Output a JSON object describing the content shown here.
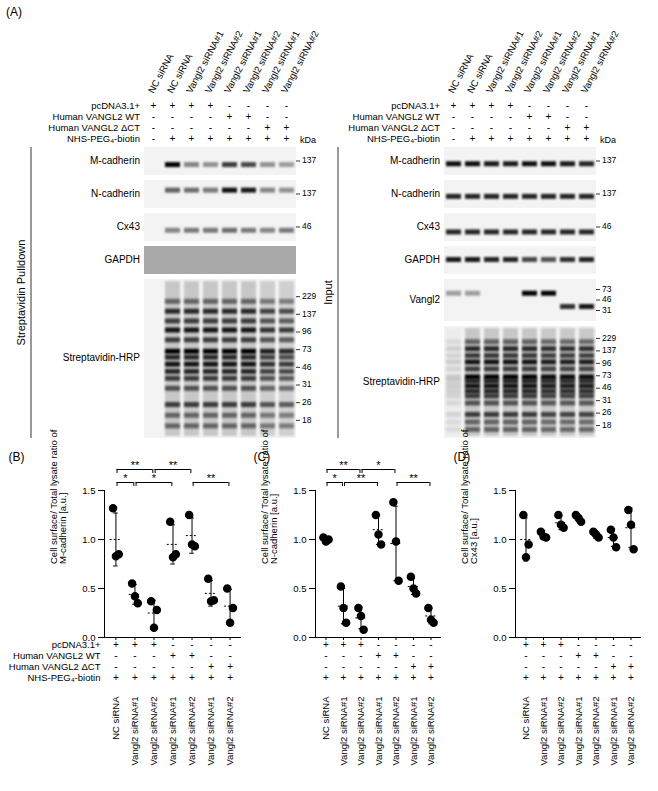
{
  "panel_A": {
    "label": "(A)",
    "kDa_label": "kDa",
    "lanes": [
      "NC siRNA",
      "NC siRNA",
      "Vangl2 siRNA#1",
      "Vangl2 siRNA#2",
      "Vangl2 siRNA#1",
      "Vangl2 siRNA#2",
      "Vangl2 siRNA#1",
      "Vangl2 siRNA#2"
    ],
    "conditions": [
      {
        "label": "pcDNA3.1+",
        "values": [
          "+",
          "+",
          "+",
          "+",
          "-",
          "-",
          "-",
          "-"
        ]
      },
      {
        "label": "Human VANGL2 WT",
        "values": [
          "-",
          "-",
          "-",
          "-",
          "+",
          "+",
          "-",
          "-"
        ]
      },
      {
        "label": "Human VANGL2 ΔCT",
        "values": [
          "-",
          "-",
          "-",
          "-",
          "-",
          "-",
          "+",
          "+"
        ]
      },
      {
        "label": "NHS-PEG₄-biotin",
        "values": [
          "-",
          "+",
          "+",
          "+",
          "+",
          "+",
          "+",
          "+"
        ]
      }
    ],
    "groups": [
      {
        "title": "Streptavidin Pulldown",
        "rows": [
          {
            "name": "M-cadherin",
            "markers": [
              137
            ],
            "kDa_range": [
              175,
              105
            ],
            "bands": [
              {
                "kDa": 128,
                "intensity": [
                  0,
                  1,
                  0.45,
                  0.4,
                  0.75,
                  0.7,
                  0.4,
                  0.35
                ]
              }
            ]
          },
          {
            "name": "N-cadherin",
            "markers": [
              137
            ],
            "kDa_range": [
              190,
              115
            ],
            "bands": [
              {
                "kDa": 150,
                "intensity": [
                  0,
                  0.6,
                  0.55,
                  0.5,
                  0.95,
                  0.9,
                  0.45,
                  0.4
                ]
              }
            ]
          },
          {
            "name": "Cx43",
            "markers": [
              46
            ],
            "kDa_range": [
              55,
              38
            ],
            "bands": [
              {
                "kDa": 44,
                "intensity": [
                  0,
                  0.45,
                  0.5,
                  0.5,
                  0.55,
                  0.5,
                  0.45,
                  0.5
                ]
              }
            ]
          },
          {
            "name": "GAPDH",
            "markers": [],
            "bands": []
          },
          {
            "name": "Streptavidin-HRP",
            "markers": [
              229,
              137,
              96,
              73,
              46,
              31,
              26,
              18
            ],
            "kDa_range": [
              260,
              15
            ],
            "lane_intensity": [
              0,
              1,
              1,
              1,
              1,
              1,
              0.85,
              0.8
            ],
            "bands": [
              {
                "kDa": 200,
                "intensity": 0.5
              },
              {
                "kDa": 150,
                "intensity": 0.8
              },
              {
                "kDa": 120,
                "intensity": 0.7
              },
              {
                "kDa": 100,
                "intensity": 0.9
              },
              {
                "kDa": 85,
                "intensity": 0.7
              },
              {
                "kDa": 70,
                "intensity": 1
              },
              {
                "kDa": 60,
                "intensity": 0.8
              },
              {
                "kDa": 50,
                "intensity": 0.9
              },
              {
                "kDa": 42,
                "intensity": 0.8
              },
              {
                "kDa": 36,
                "intensity": 0.7
              },
              {
                "kDa": 30,
                "intensity": 0.6
              },
              {
                "kDa": 25,
                "intensity": 0.7
              },
              {
                "kDa": 20,
                "intensity": 0.5
              },
              {
                "kDa": 17,
                "intensity": 0.5
              }
            ]
          }
        ]
      },
      {
        "title": "Input",
        "rows": [
          {
            "name": "M-cadherin",
            "markers": [
              137
            ],
            "kDa_range": [
              175,
              105
            ],
            "bands": [
              {
                "kDa": 130,
                "intensity": [
                  0.95,
                  0.95,
                  0.9,
                  0.9,
                  0.95,
                  0.95,
                  0.9,
                  0.85
                ]
              }
            ]
          },
          {
            "name": "N-cadherin",
            "markers": [
              137
            ],
            "kDa_range": [
              175,
              110
            ],
            "bands": [
              {
                "kDa": 132,
                "intensity": [
                  0.85,
                  0.85,
                  0.85,
                  0.85,
                  0.85,
                  0.85,
                  0.85,
                  0.85
                ]
              }
            ]
          },
          {
            "name": "Cx43",
            "markers": [
              46
            ],
            "kDa_range": [
              55,
              38
            ],
            "bands": [
              {
                "kDa": 43,
                "intensity": [
                  0.85,
                  0.85,
                  0.85,
                  0.85,
                  0.85,
                  0.85,
                  0.85,
                  0.85
                ]
              }
            ]
          },
          {
            "name": "GAPDH",
            "markers": [],
            "kDa_range": [
              45,
              30
            ],
            "bands": [
              {
                "kDa": 37,
                "intensity": [
                  0.9,
                  0.9,
                  0.85,
                  0.85,
                  0.7,
                  0.65,
                  0.8,
                  0.85
                ]
              }
            ]
          },
          {
            "name": "Vangl2",
            "markers": [
              73,
              46,
              31
            ],
            "kDa_range": [
              95,
              25
            ],
            "bands": [
              {
                "kDa": 62,
                "intensity": [
                  0.35,
                  0.35,
                  0,
                  0,
                  1,
                  1,
                  0,
                  0
                ]
              },
              {
                "kDa": 36,
                "intensity": [
                  0,
                  0,
                  0,
                  0,
                  0,
                  0,
                  0.8,
                  0.9
                ]
              }
            ]
          },
          {
            "name": "Streptavidin-HRP",
            "markers": [
              229,
              137,
              96,
              73,
              46,
              31,
              26,
              18
            ],
            "kDa_range": [
              260,
              15
            ],
            "lane_intensity": [
              0.15,
              1,
              1,
              1,
              1,
              0.95,
              0.95,
              0.95
            ],
            "bands": [
              {
                "kDa": 200,
                "intensity": 0.5
              },
              {
                "kDa": 150,
                "intensity": 0.8
              },
              {
                "kDa": 120,
                "intensity": 0.7
              },
              {
                "kDa": 100,
                "intensity": 0.9
              },
              {
                "kDa": 85,
                "intensity": 0.7
              },
              {
                "kDa": 70,
                "intensity": 1
              },
              {
                "kDa": 60,
                "intensity": 0.8
              },
              {
                "kDa": 50,
                "intensity": 0.9
              },
              {
                "kDa": 42,
                "intensity": 0.8
              },
              {
                "kDa": 36,
                "intensity": 0.7
              },
              {
                "kDa": 30,
                "intensity": 0.6
              },
              {
                "kDa": 25,
                "intensity": 0.7
              },
              {
                "kDa": 20,
                "intensity": 0.5
              },
              {
                "kDa": 17,
                "intensity": 0.5
              }
            ]
          }
        ]
      }
    ]
  },
  "chart_data": [
    {
      "type": "scatter",
      "panel": "(B)",
      "color": "#000000",
      "y_label": "Cell surface/ Total lysate ratio of M-cadherin [a.u.]",
      "categories": [
        "NC siRNA",
        "Vangl2 siRNA#1",
        "Vangl2 siRNA#2",
        "Vangl2 siRNA#1",
        "Vangl2 siRNA#2",
        "Vangl2 siRNA#1",
        "Vangl2 siRNA#2"
      ],
      "values": [
        [
          1.32,
          0.83,
          0.85
        ],
        [
          0.55,
          0.42,
          0.35
        ],
        [
          0.37,
          0.1,
          0.28
        ],
        [
          1.18,
          0.82,
          0.85
        ],
        [
          1.25,
          0.95,
          0.93
        ],
        [
          0.6,
          0.37,
          0.38
        ],
        [
          0.5,
          0.15,
          0.3
        ]
      ],
      "mean": [
        1.0,
        0.44,
        0.25,
        0.95,
        1.04,
        0.45,
        0.32
      ],
      "sd": [
        0.27,
        0.1,
        0.13,
        0.2,
        0.18,
        0.13,
        0.17
      ],
      "ylim": [
        0,
        1.5
      ],
      "yticks": [
        {
          "value": 0,
          "label": "0.0"
        },
        0.5,
        {
          "value": 1,
          "label": "1.0"
        },
        1.5
      ],
      "conditions": [
        {
          "label": "pcDNA3.1+",
          "values": [
            "+",
            "+",
            "+",
            "-",
            "-",
            "-",
            "-"
          ]
        },
        {
          "label": "Human VANGL2 WT",
          "values": [
            "-",
            "-",
            "-",
            "+",
            "+",
            "-",
            "-"
          ]
        },
        {
          "label": "Human VANGL2 ΔCT",
          "values": [
            "-",
            "-",
            "-",
            "-",
            "-",
            "+",
            "+"
          ]
        },
        {
          "label": "NHS-PEG₄-biotin",
          "values": [
            "+",
            "+",
            "+",
            "+",
            "+",
            "+",
            "+"
          ]
        }
      ],
      "significance": [
        {
          "from": 1,
          "to": 3,
          "label": "*"
        },
        {
          "from": 0,
          "to": 1,
          "label": "*"
        },
        {
          "from": 4,
          "to": 6,
          "label": "**"
        },
        {
          "from": 0,
          "to": 2,
          "label": "**"
        },
        {
          "from": 2,
          "to": 4,
          "label": "**"
        }
      ]
    },
    {
      "type": "scatter",
      "panel": "(C)",
      "color": "#000000",
      "y_label": "Cell surface/ Total lysate ratio of N-cadherin [a.u.]",
      "categories": [
        "NC siRNA",
        "Vangl2 siRNA#1",
        "Vangl2 siRNA#2",
        "Vangl2 siRNA#1",
        "Vangl2 siRNA#2",
        "Vangl2 siRNA#1",
        "Vangl2 siRNA#2"
      ],
      "values": [
        [
          1.02,
          0.98,
          1.0
        ],
        [
          0.52,
          0.3,
          0.15
        ],
        [
          0.3,
          0.22,
          0.08
        ],
        [
          1.25,
          1.05,
          0.95
        ],
        [
          1.38,
          0.98,
          0.58
        ],
        [
          0.62,
          0.5,
          0.45
        ],
        [
          0.3,
          0.18,
          0.15
        ]
      ],
      "mean": [
        1.0,
        0.32,
        0.2,
        1.1,
        0.96,
        0.52,
        0.22
      ],
      "sd": [
        0.03,
        0.18,
        0.11,
        0.15,
        0.38,
        0.08,
        0.08
      ],
      "ylim": [
        0,
        1.5
      ],
      "yticks": [
        {
          "value": 0,
          "label": "0.0"
        },
        0.5,
        {
          "value": 1,
          "label": "1.0"
        },
        1.5
      ],
      "conditions": [
        {
          "values": [
            "+",
            "+",
            "+",
            "-",
            "-",
            "-",
            "-"
          ]
        },
        {
          "values": [
            "-",
            "-",
            "-",
            "+",
            "+",
            "-",
            "-"
          ]
        },
        {
          "values": [
            "-",
            "-",
            "-",
            "-",
            "-",
            "+",
            "+"
          ]
        },
        {
          "values": [
            "+",
            "+",
            "+",
            "+",
            "+",
            "+",
            "+"
          ]
        }
      ],
      "significance": [
        {
          "from": 0,
          "to": 1,
          "label": "*"
        },
        {
          "from": 1,
          "to": 3,
          "label": "**"
        },
        {
          "from": 0,
          "to": 2,
          "label": "**"
        },
        {
          "from": 4,
          "to": 6,
          "label": "**"
        },
        {
          "from": 2,
          "to": 4,
          "label": "*"
        }
      ]
    },
    {
      "type": "scatter",
      "panel": "(D)",
      "color": "#000000",
      "y_label": "Cell surface/ Total lysate ratio of Cx43 [a.u.]",
      "categories": [
        "NC siRNA",
        "Vangl2 siRNA#1",
        "Vangl2 siRNA#2",
        "Vangl2 siRNA#1",
        "Vangl2 siRNA#2",
        "Vangl2 siRNA#1",
        "Vangl2 siRNA#2"
      ],
      "values": [
        [
          1.25,
          0.82,
          0.95
        ],
        [
          1.08,
          1.03,
          1.02
        ],
        [
          1.25,
          1.15,
          1.12
        ],
        [
          1.25,
          1.22,
          1.18
        ],
        [
          1.08,
          1.05,
          1.02
        ],
        [
          1.1,
          1.02,
          0.92
        ],
        [
          1.3,
          1.15,
          0.9
        ]
      ],
      "mean": [
        1.0,
        1.05,
        1.17,
        1.22,
        1.05,
        1.02,
        1.12
      ],
      "sd": [
        0.22,
        0.04,
        0.07,
        0.04,
        0.04,
        0.09,
        0.2
      ],
      "ylim": [
        0,
        1.5
      ],
      "yticks": [
        {
          "value": 0,
          "label": "0.0"
        },
        0.5,
        {
          "value": 1,
          "label": "1.0"
        },
        1.5
      ],
      "conditions": [
        {
          "values": [
            "+",
            "+",
            "+",
            "-",
            "-",
            "-",
            "-"
          ]
        },
        {
          "values": [
            "-",
            "-",
            "-",
            "+",
            "+",
            "-",
            "-"
          ]
        },
        {
          "values": [
            "-",
            "-",
            "-",
            "-",
            "-",
            "+",
            "+"
          ]
        },
        {
          "values": [
            "+",
            "+",
            "+",
            "+",
            "+",
            "+",
            "+"
          ]
        }
      ]
    }
  ]
}
